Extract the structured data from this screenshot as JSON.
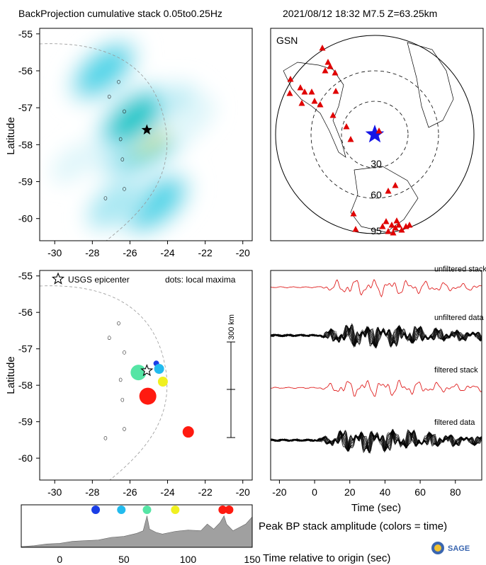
{
  "header": {
    "title_left": "BackProjection cumulative stack 0.05to0.25Hz",
    "title_right": "2021/08/12 18:32  M7.5  Z=63.25km"
  },
  "colors": {
    "event_star": "#000000",
    "station": "#e00000",
    "gsn_star": "#1515e6",
    "trace_red": "#e02020",
    "trace_black": "#000000",
    "amplitude_fill": "#a0a0a0"
  },
  "chart_data": [
    {
      "id": "heatmap",
      "type": "heatmap",
      "title": "BackProjection cumulative stack 0.05to0.25Hz",
      "ylabel": "Latitude",
      "xlabel": "",
      "xlim": [
        -30.8,
        -19.5
      ],
      "ylim": [
        -60.6,
        -54.85
      ],
      "xticks": [
        -30,
        -28,
        -26,
        -24,
        -22,
        -20
      ],
      "yticks": [
        -55,
        -56,
        -57,
        -58,
        -59,
        -60
      ],
      "epicenter": {
        "lon": -25.1,
        "lat": -57.6
      },
      "blobs": [
        {
          "lon": -25.0,
          "lat": -57.65,
          "intensity": 1.0
        },
        {
          "lon": -25.8,
          "lat": -57.3,
          "intensity": 0.55
        },
        {
          "lon": -27.4,
          "lat": -56.0,
          "intensity": 0.45
        },
        {
          "lon": -24.6,
          "lat": -59.6,
          "intensity": 0.45
        },
        {
          "lon": -26.8,
          "lat": -59.6,
          "intensity": 0.3
        },
        {
          "lon": -22.8,
          "lat": -57.3,
          "intensity": 0.2
        },
        {
          "lon": -29.0,
          "lat": -58.5,
          "intensity": 0.15
        }
      ]
    },
    {
      "id": "gsn-map",
      "type": "scatter",
      "title": "GSN",
      "distance_rings_deg": [
        30,
        60,
        95
      ],
      "ring_labels": [
        "30",
        "60",
        "95"
      ],
      "station_count": 33
    },
    {
      "id": "maxima-map",
      "type": "scatter",
      "ylabel": "Latitude",
      "xlim": [
        -30.8,
        -19.5
      ],
      "ylim": [
        -60.6,
        -54.85
      ],
      "xticks": [
        -30,
        -28,
        -26,
        -24,
        -22,
        -20
      ],
      "yticks": [
        -55,
        -56,
        -57,
        -58,
        -59,
        -60
      ],
      "legend_epicenter": "USGS epicenter",
      "legend_dots": "dots: local maxima",
      "scale_label": "300 km",
      "epicenter": {
        "lon": -25.1,
        "lat": -57.6
      },
      "points": [
        {
          "lon": -24.6,
          "lat": -57.4,
          "size": 4,
          "color": "#1a3ee6"
        },
        {
          "lon": -24.45,
          "lat": -57.55,
          "size": 7,
          "color": "#22bbee"
        },
        {
          "lon": -25.55,
          "lat": -57.65,
          "size": 11,
          "color": "#55e5a5"
        },
        {
          "lon": -24.25,
          "lat": -57.9,
          "size": 7,
          "color": "#f0f020"
        },
        {
          "lon": -25.05,
          "lat": -58.3,
          "size": 12,
          "color": "#ff1a10"
        },
        {
          "lon": -22.9,
          "lat": -59.28,
          "size": 8,
          "color": "#ff1a10"
        }
      ]
    },
    {
      "id": "seismograms",
      "type": "line",
      "xlabel": "Time (sec)",
      "xlim": [
        -25,
        95
      ],
      "xticks": [
        -20,
        0,
        20,
        40,
        60,
        80
      ],
      "series": [
        {
          "name": "unfiltered stack",
          "color": "#e02020",
          "offset": 0.92
        },
        {
          "name": "unfiltered data",
          "color": "#000000",
          "offset": 0.69
        },
        {
          "name": "filtered stack",
          "color": "#e02020",
          "offset": 0.44
        },
        {
          "name": "filtered data",
          "color": "#000000",
          "offset": 0.19
        }
      ]
    },
    {
      "id": "amplitude",
      "type": "area",
      "title": "Peak BP stack amplitude (colors = time)",
      "xlabel": "Time relative to origin (sec)",
      "xlim": [
        -30,
        150
      ],
      "xticks": [
        0,
        50,
        100,
        150
      ],
      "x": [
        -30,
        -20,
        -10,
        0,
        10,
        20,
        30,
        40,
        50,
        60,
        65,
        68,
        70,
        75,
        80,
        90,
        100,
        110,
        115,
        120,
        125,
        128,
        130,
        135,
        140,
        145,
        150
      ],
      "y": [
        0.02,
        0.05,
        0.1,
        0.12,
        0.18,
        0.2,
        0.22,
        0.3,
        0.33,
        0.42,
        0.5,
        0.95,
        0.55,
        0.45,
        0.4,
        0.48,
        0.52,
        0.5,
        0.7,
        0.55,
        0.75,
        0.95,
        0.7,
        0.5,
        0.6,
        0.7,
        0.92
      ],
      "markers": [
        {
          "x": 28,
          "color": "#1a3ee6"
        },
        {
          "x": 48,
          "color": "#22bbee"
        },
        {
          "x": 68,
          "color": "#55e5a5"
        },
        {
          "x": 90,
          "color": "#f0f020"
        },
        {
          "x": 127,
          "color": "#ff1a10"
        },
        {
          "x": 132,
          "color": "#ff1a10"
        }
      ]
    }
  ],
  "logo": {
    "text": "SAGE"
  }
}
